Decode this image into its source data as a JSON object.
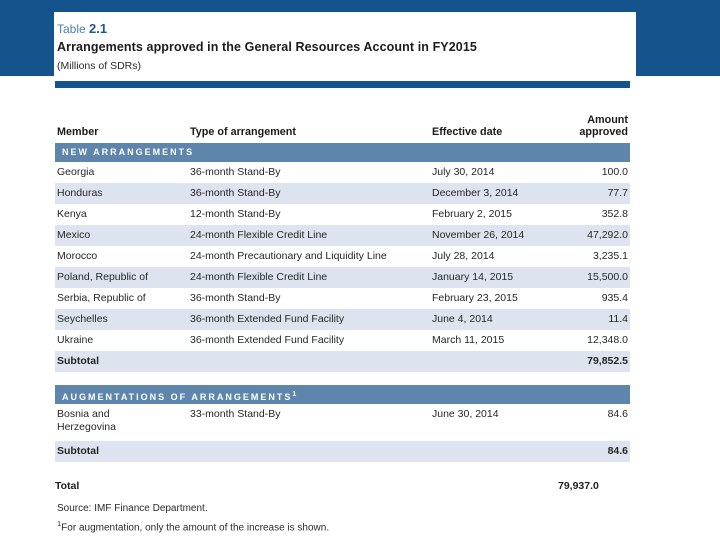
{
  "slide": {
    "table_label_prefix": "Table",
    "table_number": "2.1",
    "title": "Arrangements approved in the General Resources Account in FY2015",
    "subtitle": "(Millions of SDRs)"
  },
  "table": {
    "columns": {
      "member": "Member",
      "type": "Type of arrangement",
      "date": "Effective date",
      "amount_line1": "Amount",
      "amount_line2": "approved"
    },
    "sections": [
      {
        "header": "NEW ARRANGEMENTS",
        "rows": [
          {
            "member": "Georgia",
            "type": "36-month Stand-By",
            "date": "July 30, 2014",
            "amount": "100.0"
          },
          {
            "member": "Honduras",
            "type": "36-month Stand-By",
            "date": "December 3, 2014",
            "amount": "77.7"
          },
          {
            "member": "Kenya",
            "type": "12-month Stand-By",
            "date": "February 2, 2015",
            "amount": "352.8"
          },
          {
            "member": "Mexico",
            "type": "24-month Flexible Credit Line",
            "date": "November 26, 2014",
            "amount": "47,292.0"
          },
          {
            "member": "Morocco",
            "type": "24-month Precautionary and Liquidity Line",
            "date": "July 28, 2014",
            "amount": "3,235.1"
          },
          {
            "member": "Poland, Republic of",
            "type": "24-month Flexible Credit Line",
            "date": "January 14, 2015",
            "amount": "15,500.0"
          },
          {
            "member": "Serbia, Republic of",
            "type": "36-month Stand-By",
            "date": "February 23, 2015",
            "amount": "935.4"
          },
          {
            "member": "Seychelles",
            "type": "36-month Extended Fund Facility",
            "date": "June 4, 2014",
            "amount": "11.4"
          },
          {
            "member": "Ukraine",
            "type": "36-month Extended Fund Facility",
            "date": "March 11, 2015",
            "amount": "12,348.0"
          }
        ],
        "subtotal_label": "Subtotal",
        "subtotal_value": "79,852.5"
      },
      {
        "header": "AUGMENTATIONS OF ARRANGEMENTS",
        "header_sup": "1",
        "rows": [
          {
            "member": "Bosnia and Herzegovina",
            "type": "33-month Stand-By",
            "date": "June 30, 2014",
            "amount": "84.6"
          }
        ],
        "subtotal_label": "Subtotal",
        "subtotal_value": "84.6"
      }
    ],
    "total_label": "Total",
    "total_value": "79,937.0"
  },
  "footer": {
    "source": "Source: IMF Finance Department.",
    "footnote_sup": "1",
    "footnote": "For augmentation, only the amount of the increase is shown."
  },
  "colors": {
    "navy": "#15538c",
    "section_bar": "#5e85ab",
    "alt_row": "#dde4ef",
    "title_label_blue": "#4d80b4",
    "title_number_navy": "#1c5a99"
  }
}
